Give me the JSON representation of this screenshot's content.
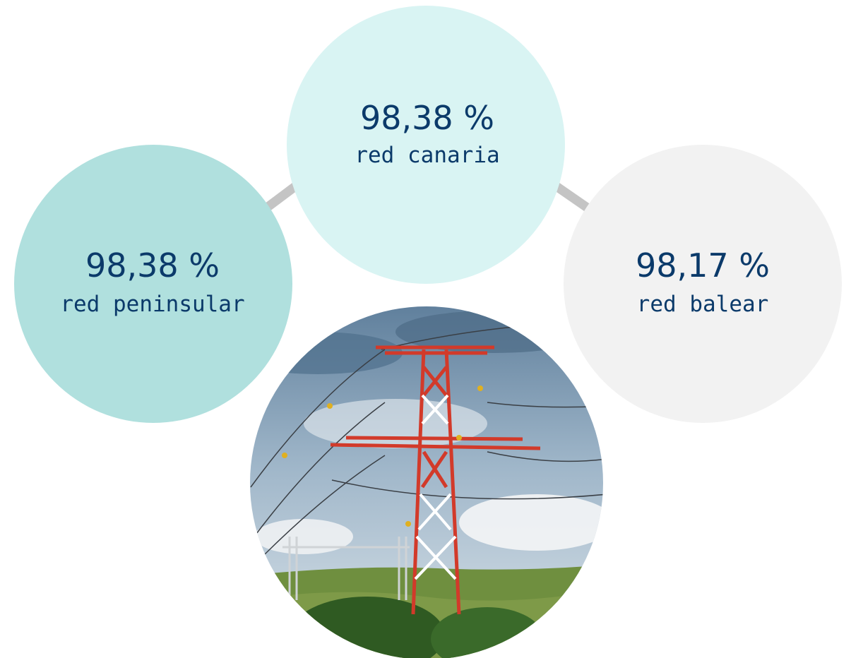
{
  "stats": [
    {
      "value": "98,38 %",
      "label": "red canaria"
    },
    {
      "value": "98,38 %",
      "label": "red peninsular"
    },
    {
      "value": "98,17 %",
      "label": "red balear"
    }
  ]
}
